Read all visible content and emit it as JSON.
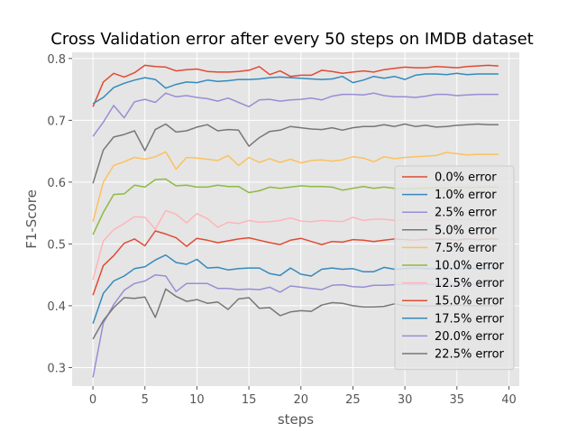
{
  "chart_data": {
    "type": "line",
    "title": "Cross Validation error after every 50 steps on IMDB dataset",
    "xlabel": "steps",
    "ylabel": "F1-Score",
    "xlim": [
      -2,
      41
    ],
    "ylim": [
      0.27,
      0.81
    ],
    "xticks": [
      0,
      5,
      10,
      15,
      20,
      25,
      30,
      35,
      40
    ],
    "yticks": [
      0.3,
      0.4,
      0.5,
      0.6,
      0.7,
      0.8
    ],
    "xtick_labels": [
      "0",
      "5",
      "10",
      "15",
      "20",
      "25",
      "30",
      "35",
      "40"
    ],
    "ytick_labels": [
      "0.3",
      "0.4",
      "0.5",
      "0.6",
      "0.7",
      "0.8"
    ],
    "grid": true,
    "legend_position": "lower-right",
    "x": [
      0,
      1,
      2,
      3,
      4,
      5,
      6,
      7,
      8,
      9,
      10,
      11,
      12,
      13,
      14,
      15,
      16,
      17,
      18,
      19,
      20,
      21,
      22,
      23,
      24,
      25,
      26,
      27,
      28,
      29,
      30,
      31,
      32,
      33,
      34,
      35,
      36,
      37,
      38,
      39
    ],
    "series": [
      {
        "name": "0.0% error",
        "color": "#E24A33",
        "values": [
          0.722,
          0.762,
          0.776,
          0.77,
          0.777,
          0.789,
          0.787,
          0.786,
          0.78,
          0.782,
          0.783,
          0.779,
          0.778,
          0.778,
          0.779,
          0.781,
          0.787,
          0.774,
          0.78,
          0.771,
          0.773,
          0.773,
          0.781,
          0.779,
          0.776,
          0.778,
          0.78,
          0.778,
          0.782,
          0.784,
          0.786,
          0.785,
          0.785,
          0.787,
          0.786,
          0.785,
          0.787,
          0.788,
          0.789,
          0.788
        ]
      },
      {
        "name": "1.0% error",
        "color": "#348ABD",
        "values": [
          0.727,
          0.737,
          0.753,
          0.76,
          0.765,
          0.769,
          0.766,
          0.752,
          0.758,
          0.762,
          0.761,
          0.765,
          0.763,
          0.764,
          0.766,
          0.766,
          0.767,
          0.769,
          0.77,
          0.769,
          0.768,
          0.767,
          0.766,
          0.767,
          0.771,
          0.761,
          0.765,
          0.771,
          0.768,
          0.771,
          0.766,
          0.773,
          0.775,
          0.775,
          0.774,
          0.776,
          0.774,
          0.775,
          0.775,
          0.775
        ]
      },
      {
        "name": "2.5% error",
        "color": "#988ED5",
        "values": [
          0.674,
          0.697,
          0.724,
          0.704,
          0.73,
          0.734,
          0.729,
          0.744,
          0.738,
          0.74,
          0.737,
          0.735,
          0.731,
          0.736,
          0.729,
          0.722,
          0.733,
          0.734,
          0.731,
          0.733,
          0.734,
          0.736,
          0.733,
          0.739,
          0.742,
          0.742,
          0.741,
          0.744,
          0.74,
          0.738,
          0.738,
          0.737,
          0.739,
          0.742,
          0.742,
          0.74,
          0.741,
          0.742,
          0.742,
          0.742
        ]
      },
      {
        "name": "5.0% error",
        "color": "#777777",
        "values": [
          0.598,
          0.652,
          0.673,
          0.677,
          0.683,
          0.651,
          0.685,
          0.694,
          0.681,
          0.683,
          0.689,
          0.693,
          0.683,
          0.685,
          0.684,
          0.658,
          0.672,
          0.682,
          0.684,
          0.69,
          0.688,
          0.686,
          0.685,
          0.688,
          0.684,
          0.688,
          0.69,
          0.69,
          0.693,
          0.69,
          0.694,
          0.69,
          0.692,
          0.689,
          0.69,
          0.692,
          0.693,
          0.694,
          0.693,
          0.693
        ]
      },
      {
        "name": "7.5% error",
        "color": "#FBC15E",
        "values": [
          0.536,
          0.6,
          0.627,
          0.633,
          0.64,
          0.637,
          0.641,
          0.649,
          0.621,
          0.64,
          0.639,
          0.637,
          0.635,
          0.643,
          0.627,
          0.64,
          0.632,
          0.638,
          0.632,
          0.637,
          0.631,
          0.635,
          0.636,
          0.634,
          0.636,
          0.641,
          0.639,
          0.633,
          0.641,
          0.638,
          0.64,
          0.641,
          0.642,
          0.643,
          0.648,
          0.646,
          0.644,
          0.645,
          0.645,
          0.645
        ]
      },
      {
        "name": "10.0% error",
        "color": "#8EBA42",
        "values": [
          0.515,
          0.551,
          0.58,
          0.581,
          0.595,
          0.592,
          0.604,
          0.605,
          0.594,
          0.595,
          0.592,
          0.592,
          0.595,
          0.593,
          0.593,
          0.583,
          0.586,
          0.592,
          0.59,
          0.592,
          0.594,
          0.593,
          0.593,
          0.592,
          0.587,
          0.59,
          0.593,
          0.59,
          0.592,
          0.59,
          0.589,
          0.59,
          0.59,
          0.591,
          0.59,
          0.592,
          0.591,
          0.592,
          0.592,
          0.592
        ]
      },
      {
        "name": "12.5% error",
        "color": "#FFB5B8",
        "values": [
          0.442,
          0.505,
          0.523,
          0.533,
          0.544,
          0.543,
          0.524,
          0.554,
          0.548,
          0.534,
          0.549,
          0.541,
          0.527,
          0.535,
          0.533,
          0.538,
          0.535,
          0.536,
          0.538,
          0.542,
          0.537,
          0.536,
          0.538,
          0.537,
          0.536,
          0.543,
          0.538,
          0.54,
          0.54,
          0.538,
          0.539,
          0.538,
          0.539,
          0.538,
          0.539,
          0.54,
          0.539,
          0.539,
          0.539,
          0.539
        ]
      },
      {
        "name": "15.0% error",
        "color": "#E24A33",
        "values": [
          0.417,
          0.465,
          0.481,
          0.501,
          0.508,
          0.497,
          0.521,
          0.516,
          0.51,
          0.496,
          0.509,
          0.506,
          0.502,
          0.505,
          0.508,
          0.51,
          0.506,
          0.502,
          0.499,
          0.506,
          0.509,
          0.504,
          0.499,
          0.504,
          0.503,
          0.507,
          0.506,
          0.504,
          0.506,
          0.508,
          0.507,
          0.506,
          0.508,
          0.507,
          0.508,
          0.506,
          0.508,
          0.507,
          0.508,
          0.508
        ]
      },
      {
        "name": "17.5% error",
        "color": "#348ABD",
        "values": [
          0.371,
          0.42,
          0.44,
          0.448,
          0.46,
          0.463,
          0.474,
          0.482,
          0.47,
          0.467,
          0.475,
          0.461,
          0.462,
          0.458,
          0.46,
          0.461,
          0.461,
          0.452,
          0.449,
          0.461,
          0.451,
          0.448,
          0.459,
          0.461,
          0.459,
          0.46,
          0.455,
          0.455,
          0.462,
          0.459,
          0.46,
          0.461,
          0.46,
          0.46,
          0.461,
          0.46,
          0.461,
          0.46,
          0.461,
          0.461
        ]
      },
      {
        "name": "20.0% error",
        "color": "#988ED5",
        "values": [
          0.284,
          0.372,
          0.402,
          0.425,
          0.436,
          0.44,
          0.45,
          0.448,
          0.423,
          0.436,
          0.436,
          0.436,
          0.428,
          0.428,
          0.426,
          0.427,
          0.426,
          0.43,
          0.422,
          0.432,
          0.43,
          0.428,
          0.426,
          0.433,
          0.434,
          0.431,
          0.43,
          0.433,
          0.433,
          0.434,
          0.435,
          0.434,
          0.435,
          0.434,
          0.435,
          0.434,
          0.435,
          0.434,
          0.435,
          0.435
        ]
      },
      {
        "name": "22.5% error",
        "color": "#777777",
        "values": [
          0.346,
          0.376,
          0.397,
          0.413,
          0.412,
          0.414,
          0.381,
          0.427,
          0.415,
          0.407,
          0.41,
          0.404,
          0.406,
          0.394,
          0.411,
          0.413,
          0.396,
          0.397,
          0.384,
          0.39,
          0.392,
          0.391,
          0.401,
          0.405,
          0.404,
          0.4,
          0.398,
          0.398,
          0.399,
          0.403,
          0.4,
          0.4,
          0.399,
          0.4,
          0.4,
          0.401,
          0.4,
          0.4,
          0.4,
          0.4
        ]
      }
    ]
  }
}
